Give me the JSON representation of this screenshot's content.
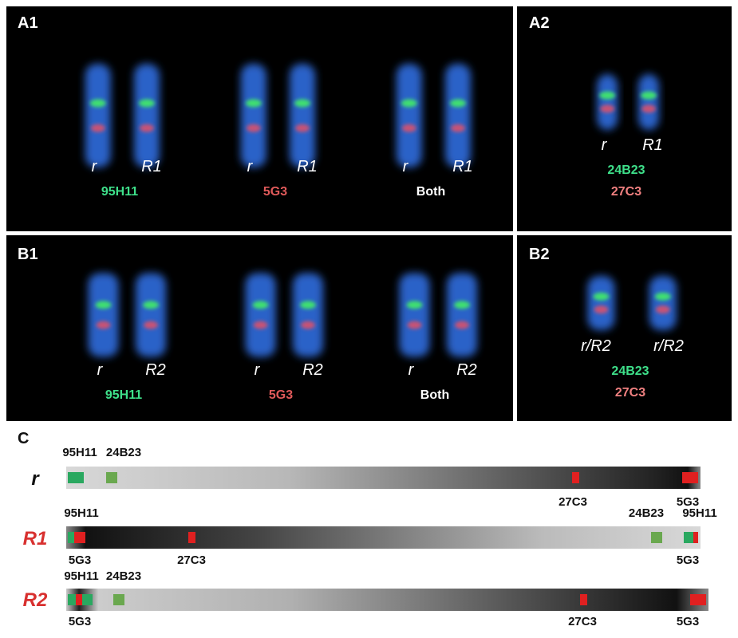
{
  "panels": [
    {
      "label": "A1",
      "groups": [
        {
          "chromosomes": [
            "r",
            "R1"
          ],
          "probes": [
            {
              "text": "95H11",
              "color": "#3ee08a"
            }
          ]
        },
        {
          "chromosomes": [
            "r",
            "R1"
          ],
          "probes": [
            {
              "text": "5G3",
              "color": "#e05a5a"
            }
          ]
        },
        {
          "chromosomes": [
            "r",
            "R1"
          ],
          "probes": [
            {
              "text": "Both",
              "color": "#ffffff"
            }
          ]
        }
      ]
    },
    {
      "label": "A2",
      "groups": [
        {
          "chromosomes": [
            "r",
            "R1"
          ],
          "probes": [
            {
              "text": "24B23",
              "color": "#3ee08a"
            },
            {
              "text": "27C3",
              "color": "#f08080"
            }
          ]
        }
      ]
    },
    {
      "label": "B1",
      "groups": [
        {
          "chromosomes": [
            "r",
            "R2"
          ],
          "probes": [
            {
              "text": "95H11",
              "color": "#3ee08a"
            }
          ]
        },
        {
          "chromosomes": [
            "r",
            "R2"
          ],
          "probes": [
            {
              "text": "5G3",
              "color": "#e05a5a"
            }
          ]
        },
        {
          "chromosomes": [
            "r",
            "R2"
          ],
          "probes": [
            {
              "text": "Both",
              "color": "#ffffff"
            }
          ]
        }
      ]
    },
    {
      "label": "B2",
      "groups": [
        {
          "chromosomes": [
            "r/R2",
            "r/R2"
          ],
          "probes": [
            {
              "text": "24B23",
              "color": "#3ee08a"
            },
            {
              "text": "27C3",
              "color": "#f08080"
            }
          ]
        }
      ]
    }
  ],
  "panel_c": {
    "label": "C",
    "rows": [
      {
        "name": "r",
        "color": "#111111",
        "above": [
          "95H11",
          "24B23"
        ],
        "below": [
          "27C3",
          "5G3"
        ]
      },
      {
        "name": "R1",
        "color": "#d8302f",
        "above": [
          "95H11",
          "24B23",
          "95H11"
        ],
        "below": [
          "5G3",
          "27C3",
          "5G3"
        ]
      },
      {
        "name": "R2",
        "color": "#d8302f",
        "above": [
          "95H11",
          "24B23"
        ],
        "below": [
          "5G3",
          "27C3",
          "5G3"
        ]
      }
    ]
  }
}
